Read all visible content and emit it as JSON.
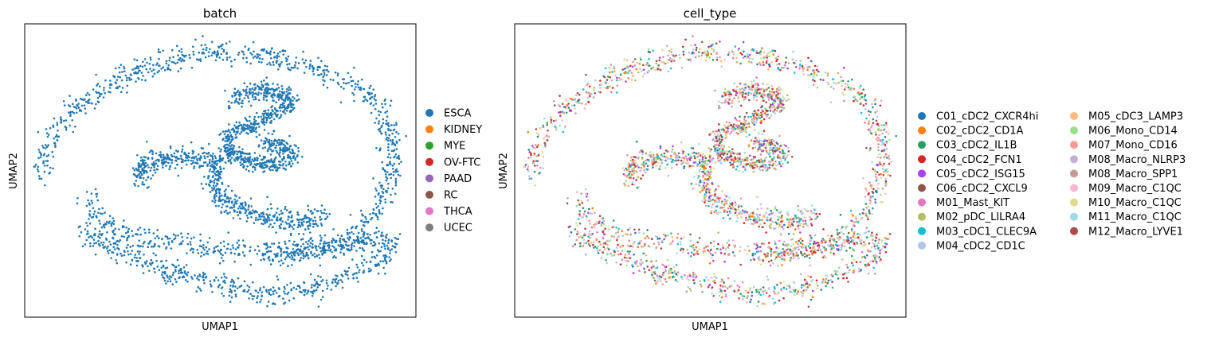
{
  "chart_data": [
    {
      "type": "scatter",
      "title": "batch",
      "xlabel": "UMAP1",
      "ylabel": "UMAP2",
      "ticks": false,
      "grid": false,
      "legend_position": "right",
      "legend": [
        {
          "label": "ESCA",
          "color": "#1f77b4"
        },
        {
          "label": "KIDNEY",
          "color": "#ff7f0e"
        },
        {
          "label": "MYE",
          "color": "#2ca02c"
        },
        {
          "label": "OV-FTC",
          "color": "#d62728"
        },
        {
          "label": "PAAD",
          "color": "#9467bd"
        },
        {
          "label": "RC",
          "color": "#8c564b"
        },
        {
          "label": "THCA",
          "color": "#e377c2"
        },
        {
          "label": "UCEC",
          "color": "#7f7f7f"
        }
      ],
      "point_color": "#1f77b4",
      "point_count": 3200
    },
    {
      "type": "scatter",
      "title": "cell_type",
      "xlabel": "UMAP1",
      "ylabel": "UMAP2",
      "ticks": false,
      "grid": false,
      "legend_position": "right",
      "legend": [
        {
          "label": "C01_cDC2_CXCR4hi",
          "color": "#1f77b4"
        },
        {
          "label": "C02_cDC2_CD1A",
          "color": "#ff7f0e"
        },
        {
          "label": "C03_cDC2_IL1B",
          "color": "#279e68"
        },
        {
          "label": "C04_cDC2_FCN1",
          "color": "#d62728"
        },
        {
          "label": "C05_cDC2_ISG15",
          "color": "#aa40fc"
        },
        {
          "label": "C06_cDC2_CXCL9",
          "color": "#8c564b"
        },
        {
          "label": "M01_Mast_KIT",
          "color": "#e377c2"
        },
        {
          "label": "M02_pDC_LILRA4",
          "color": "#b5bd61"
        },
        {
          "label": "M03_cDC1_CLEC9A",
          "color": "#17becf"
        },
        {
          "label": "M04_cDC2_CD1C",
          "color": "#aec7e8"
        },
        {
          "label": "M05_cDC3_LAMP3",
          "color": "#ffbb78"
        },
        {
          "label": "M06_Mono_CD14",
          "color": "#98df8a"
        },
        {
          "label": "M07_Mono_CD16",
          "color": "#ff9896"
        },
        {
          "label": "M08_Macro_NLRP3",
          "color": "#c5b0d5"
        },
        {
          "label": "M08_Macro_SPP1",
          "color": "#c49c94"
        },
        {
          "label": "M09_Macro_C1QC",
          "color": "#f7b6d2"
        },
        {
          "label": "M10_Macro_C1QC",
          "color": "#dbdb8d"
        },
        {
          "label": "M11_Macro_C1QC",
          "color": "#9edae5"
        },
        {
          "label": "M12_Macro_LYVE1",
          "color": "#ad494a"
        }
      ],
      "point_count": 3200
    }
  ]
}
